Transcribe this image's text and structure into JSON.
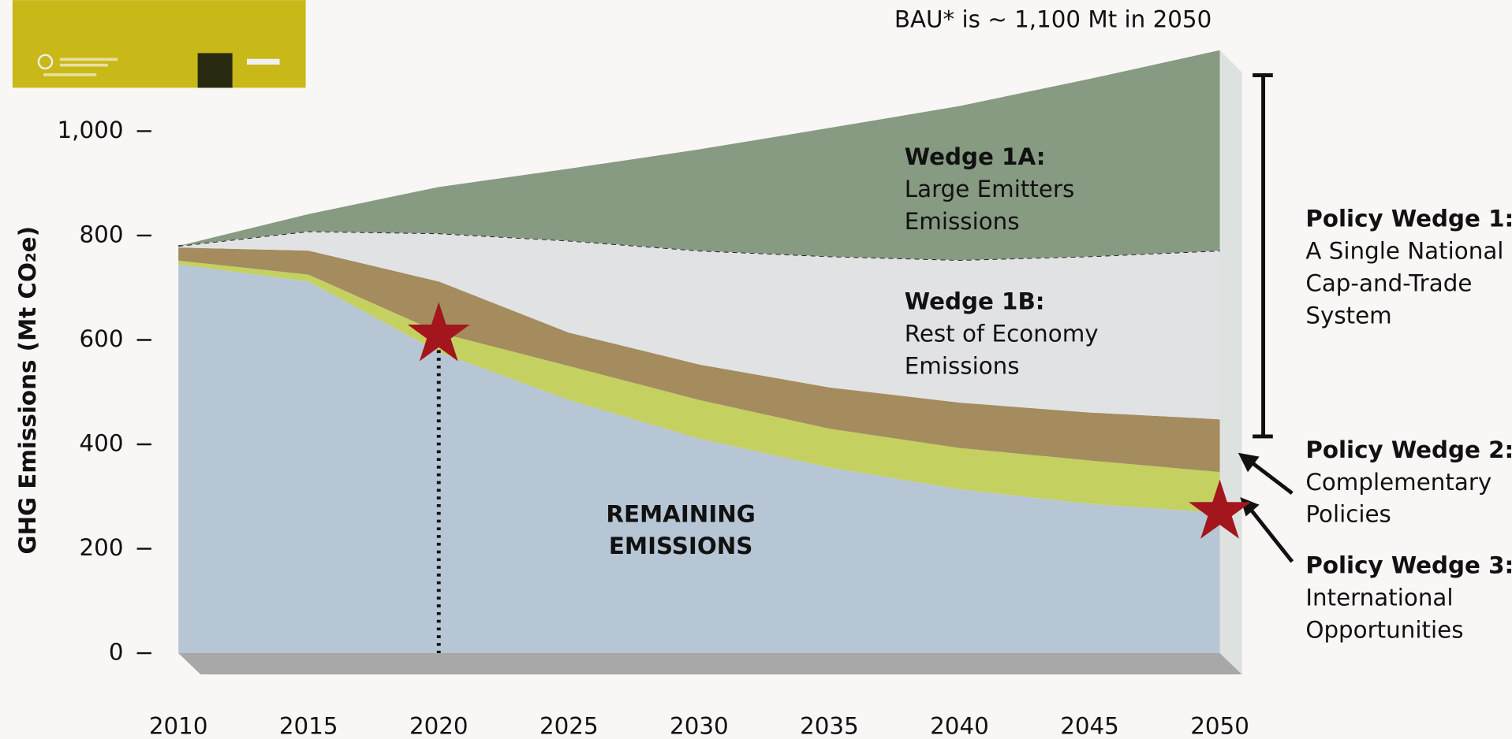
{
  "chart_data": {
    "type": "area",
    "stacked": true,
    "y_label": "GHG Emissions (Mt CO₂e)",
    "title": "BAU* is ~ 1,100 Mt in 2050",
    "x": [
      2010,
      2015,
      2020,
      2025,
      2030,
      2035,
      2040,
      2045,
      2050
    ],
    "xlim": [
      2010,
      2050
    ],
    "xticks": [
      2010,
      2015,
      2020,
      2025,
      2030,
      2035,
      2040,
      2045,
      2050
    ],
    "ylim": [
      0,
      1250
    ],
    "yticks": [
      0,
      200,
      400,
      600,
      800,
      {
        "value": 1000,
        "label": "1,000"
      }
    ],
    "series": [
      {
        "name_lines": [
          "REMAINING",
          "EMISSIONS"
        ],
        "color": "#b7c6d4",
        "values": [
          745,
          712,
          577,
          485,
          411,
          356,
          314,
          286,
          269
        ]
      },
      {
        "name": "Policy Wedge 3:",
        "description": [
          "International",
          "Opportunities"
        ],
        "color": "#c4d060",
        "values": [
          7,
          13,
          37,
          65,
          74,
          74,
          79,
          83,
          78
        ]
      },
      {
        "name": "Policy Wedge 2:",
        "description": [
          "Complementary",
          "Policies"
        ],
        "color": "#a48c5e",
        "values": [
          25,
          46,
          98,
          64,
          68,
          79,
          87,
          92,
          101
        ]
      },
      {
        "name": "Wedge 1B:",
        "description": [
          "Rest of Economy",
          "Emissions"
        ],
        "color": "#e1e2e4",
        "values": [
          3,
          37,
          92,
          176,
          218,
          251,
          273,
          299,
          323
        ]
      },
      {
        "name": "Wedge 1A:",
        "description": [
          "Large Emitters",
          "Emissions"
        ],
        "color": "#879a82",
        "values": [
          0,
          33,
          89,
          138,
          194,
          246,
          295,
          340,
          384
        ]
      }
    ],
    "policy_wedge_1": {
      "name": "Policy Wedge 1:",
      "description": [
        "A Single National",
        "Cap-and-Trade",
        "System"
      ]
    },
    "markers": [
      {
        "x": 2020,
        "y": 610
      },
      {
        "x": 2050,
        "y": 270
      }
    ],
    "marker_color": "#a3161e"
  }
}
